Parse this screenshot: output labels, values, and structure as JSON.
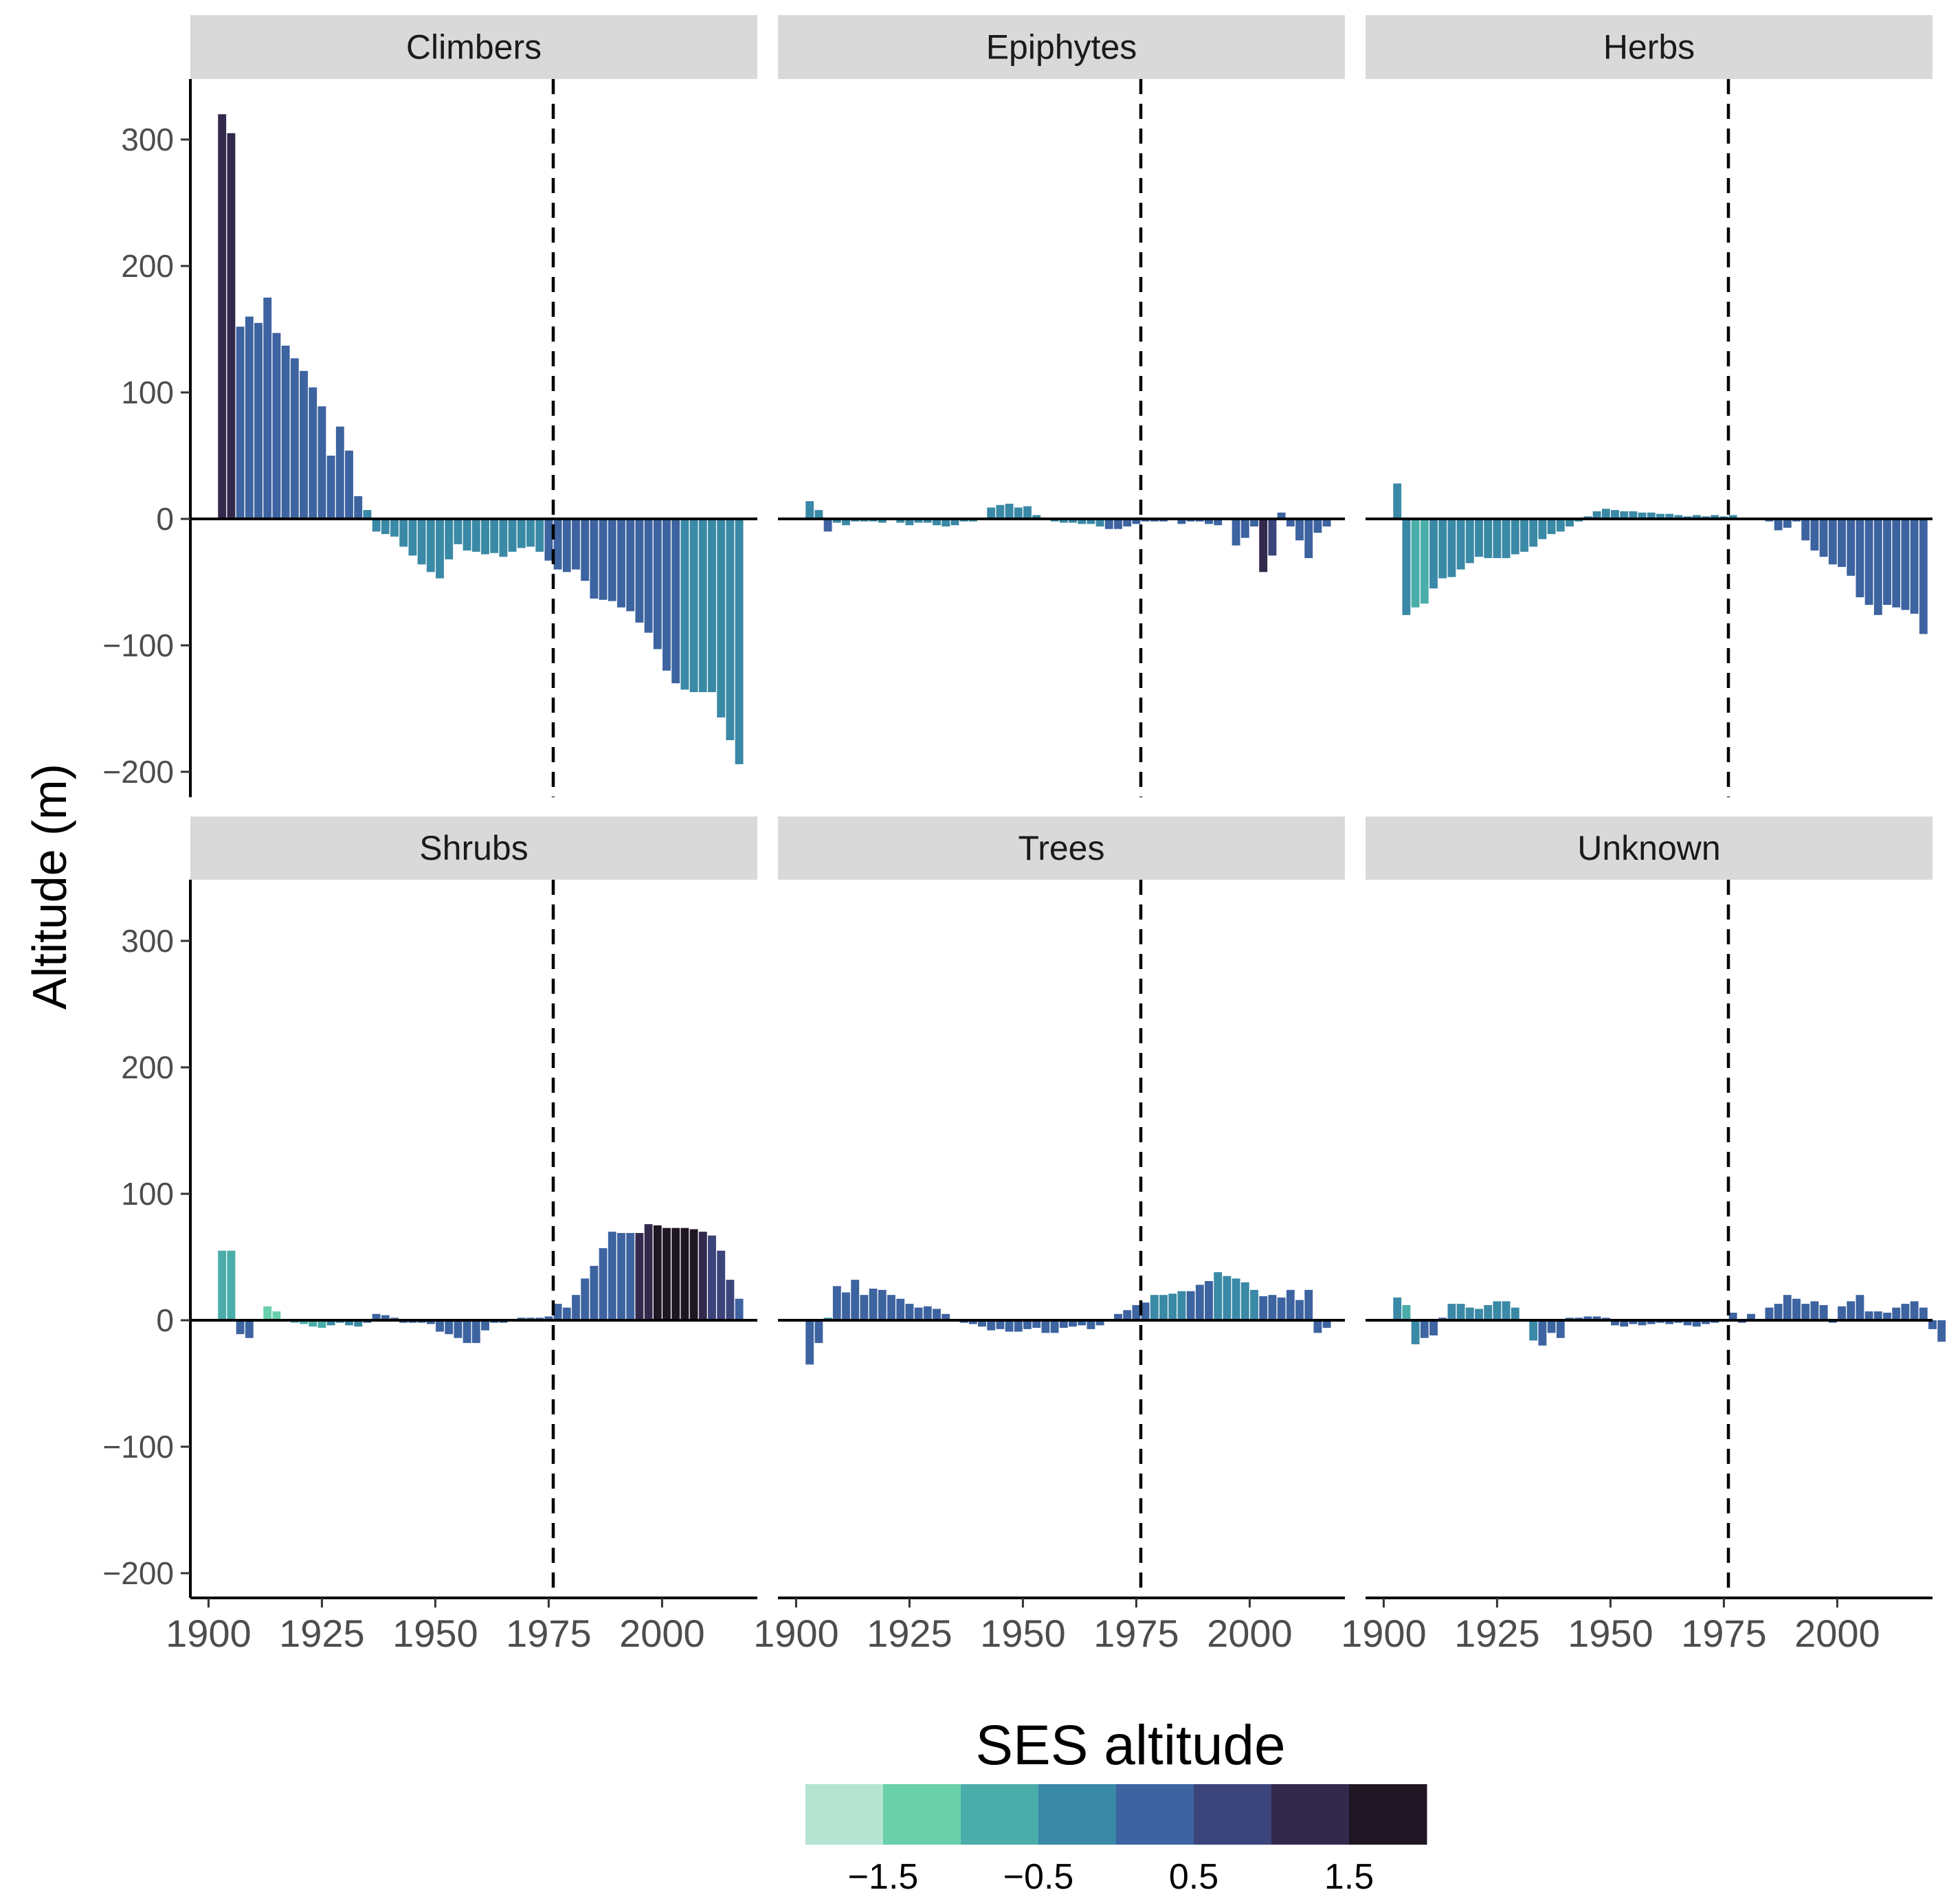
{
  "chart_data": {
    "type": "bar",
    "facet_layout": "2 rows x 3 columns",
    "ylabel": "Altitude (m)",
    "ylim": [
      -220,
      345
    ],
    "yticks": [
      300,
      200,
      100,
      0,
      -100,
      -200
    ],
    "ytick_labels": [
      "300",
      "200",
      "100",
      "0",
      "−100",
      "−200"
    ],
    "xlim": [
      1896,
      2021
    ],
    "xticks": [
      1900,
      1925,
      1950,
      1975,
      2000
    ],
    "xtick_labels": [
      "1900",
      "1925",
      "1950",
      "1975",
      "2000"
    ],
    "reference_line": {
      "x": 1976,
      "style": "dashed"
    },
    "grid": false,
    "legend": {
      "title": "SES altitude",
      "placement": "bottom",
      "bin_colors": [
        "#b5e4d2",
        "#69d0ab",
        "#4aada9",
        "#3a89a6",
        "#3d63a0",
        "#3b447b",
        "#33294d",
        "#1f1623"
      ],
      "tick_values": [
        -1.5,
        -0.5,
        0.5,
        1.5
      ],
      "tick_labels": [
        "−1.5",
        "−0.5",
        "0.5",
        "1.5"
      ],
      "bin_range": [
        -2,
        2
      ]
    },
    "x_start": 1903,
    "x_step": 2,
    "panels": [
      {
        "name": "Climbers",
        "values": [
          320,
          305,
          152,
          160,
          155,
          175,
          147,
          137,
          127,
          117,
          104,
          89,
          50,
          73,
          54,
          18,
          7,
          -10,
          -12,
          -14,
          -22,
          -29,
          -36,
          -42,
          -47,
          -32,
          -20,
          -25,
          -26,
          -28,
          -27,
          -30,
          -26,
          -23,
          -22,
          -26,
          -33,
          -40,
          -42,
          -40,
          -49,
          -63,
          -64,
          -65,
          -70,
          -73,
          -82,
          -90,
          -103,
          -120,
          -130,
          -135,
          -137,
          -137,
          -137,
          -157,
          -175,
          -194
        ],
        "ses": [
          1.1,
          1.1,
          0.4,
          0.4,
          0.4,
          0.4,
          0.4,
          0.4,
          0.4,
          0.4,
          0.4,
          0.4,
          0.4,
          0.4,
          0.4,
          0.4,
          -0.4,
          -0.3,
          -0.2,
          -0.3,
          -0.4,
          -0.4,
          -0.4,
          -0.4,
          -0.4,
          -0.4,
          -0.4,
          -0.4,
          -0.4,
          -0.4,
          -0.4,
          -0.4,
          -0.3,
          -0.3,
          -0.3,
          -0.3,
          0.2,
          0.2,
          0.2,
          0.2,
          0.2,
          0.2,
          0.2,
          0.2,
          0.2,
          0.2,
          0.2,
          0.2,
          0.2,
          0.2,
          0.2,
          -0.2,
          -0.2,
          -0.2,
          -0.2,
          -0.2,
          -0.2,
          -0.2
        ]
      },
      {
        "name": "Epiphytes",
        "values": [
          14,
          7,
          -10,
          -3,
          -5,
          -2,
          -2,
          -2,
          -3,
          -1,
          -3,
          -5,
          -3,
          -3,
          -5,
          -6,
          -5,
          -2,
          -2,
          1,
          9,
          11,
          12,
          9,
          10,
          3,
          1,
          -2,
          -3,
          -3,
          -4,
          -4,
          -6,
          -8,
          -8,
          -6,
          -4,
          -2,
          -2,
          -2,
          -1,
          -4,
          -2,
          -2,
          -4,
          -5,
          -1,
          -21,
          -15,
          -6,
          -42,
          -29,
          5,
          -6,
          -17,
          -31,
          -11,
          -6
        ],
        "ses": [
          -0.4,
          -0.4,
          0.1,
          -0.3,
          -0.3,
          -0.3,
          -0.3,
          -0.3,
          -0.3,
          -0.3,
          -0.3,
          -0.3,
          -0.3,
          -0.3,
          -0.3,
          -0.3,
          -0.3,
          -0.3,
          -0.3,
          -0.3,
          -0.4,
          -0.4,
          -0.4,
          -0.4,
          -0.4,
          -0.3,
          -0.3,
          -0.3,
          -0.3,
          -0.3,
          -0.3,
          -0.3,
          -0.3,
          0.3,
          0.3,
          0.3,
          0.3,
          0.3,
          0.3,
          0.3,
          0.3,
          0.3,
          0.3,
          0.3,
          0.3,
          0.3,
          0.3,
          0.3,
          0.3,
          0.3,
          1.0,
          0.6,
          0.3,
          0.3,
          0.3,
          0.3,
          0.3,
          0.3
        ]
      },
      {
        "name": "Herbs",
        "values": [
          28,
          -76,
          -70,
          -67,
          -55,
          -47,
          -46,
          -40,
          -35,
          -30,
          -31,
          -31,
          -31,
          -28,
          -26,
          -22,
          -16,
          -12,
          -10,
          -6,
          -2,
          2,
          6,
          8,
          7,
          6,
          6,
          5,
          5,
          4,
          4,
          3,
          2,
          3,
          2,
          3,
          2,
          3,
          0,
          0,
          0,
          -2,
          -9,
          -7,
          -2,
          -17,
          -25,
          -30,
          -36,
          -38,
          -45,
          -62,
          -68,
          -76,
          -68,
          -70,
          -72,
          -75,
          -91
        ],
        "ses": [
          -0.3,
          -0.3,
          -0.8,
          -0.8,
          -0.3,
          -0.3,
          -0.3,
          -0.3,
          -0.3,
          -0.3,
          -0.3,
          -0.3,
          -0.3,
          -0.3,
          -0.3,
          -0.3,
          -0.3,
          -0.3,
          -0.3,
          -0.3,
          -0.3,
          -0.3,
          -0.3,
          -0.3,
          -0.3,
          -0.3,
          -0.3,
          -0.3,
          -0.3,
          -0.3,
          -0.3,
          -0.3,
          -0.3,
          -0.3,
          -0.3,
          -0.3,
          -0.3,
          -0.3,
          -0.3,
          0.3,
          0.3,
          0.3,
          0.3,
          0.3,
          0.3,
          0.3,
          0.3,
          0.3,
          0.3,
          0.3,
          0.3,
          0.3,
          0.3,
          0.3,
          0.3,
          0.3,
          0.3,
          0.3,
          0.3
        ]
      },
      {
        "name": "Shrubs",
        "values": [
          55,
          55,
          -11,
          -14,
          -1,
          11,
          7,
          -1,
          -2,
          -3,
          -5,
          -6,
          -4,
          -2,
          -4,
          -5,
          -2,
          5,
          4,
          2,
          -2,
          -2,
          -2,
          -3,
          -9,
          -11,
          -14,
          -18,
          -18,
          -8,
          -2,
          -2,
          -1,
          2,
          2,
          2,
          3,
          13,
          10,
          20,
          33,
          43,
          57,
          70,
          69,
          69,
          69,
          76,
          75,
          73,
          73,
          73,
          72,
          70,
          67,
          55,
          32,
          17
        ],
        "ses": [
          -0.6,
          -0.6,
          0.1,
          0.1,
          -1.0,
          -1.2,
          -1.2,
          -0.3,
          -0.7,
          -0.7,
          -0.7,
          -0.7,
          -0.3,
          -0.3,
          -0.3,
          -0.3,
          0.1,
          0.1,
          0.1,
          0.1,
          0.1,
          0.1,
          0.1,
          0.1,
          0.1,
          0.1,
          0.1,
          0.1,
          0.1,
          0.1,
          0.1,
          0.1,
          0.1,
          0.1,
          0.1,
          0.1,
          0.1,
          0.3,
          0.3,
          0.3,
          0.3,
          0.3,
          0.3,
          0.4,
          0.4,
          0.4,
          1.1,
          1.1,
          1.6,
          1.6,
          1.6,
          1.6,
          1.6,
          1.1,
          0.9,
          0.9,
          0.9,
          0.4
        ]
      },
      {
        "name": "Trees",
        "values": [
          -35,
          -18,
          2,
          27,
          22,
          32,
          20,
          25,
          24,
          20,
          17,
          13,
          10,
          11,
          9,
          5,
          0,
          -2,
          -3,
          -5,
          -8,
          -7,
          -9,
          -9,
          -7,
          -6,
          -10,
          -10,
          -6,
          -5,
          -4,
          -7,
          -4,
          1,
          5,
          8,
          12,
          14,
          20,
          20,
          21,
          23,
          23,
          28,
          31,
          38,
          35,
          33,
          30,
          24,
          19,
          20,
          18,
          24,
          16,
          24,
          -10,
          -6
        ],
        "ses": [
          0.4,
          0.4,
          -0.3,
          0.4,
          0.4,
          0.4,
          0.4,
          0.4,
          0.4,
          0.4,
          0.4,
          0.4,
          0.4,
          0.4,
          0.4,
          0.4,
          0.4,
          0.4,
          0.4,
          0.4,
          0.4,
          0.4,
          0.4,
          0.4,
          0.4,
          0.4,
          0.4,
          0.4,
          0.4,
          0.4,
          0.4,
          0.4,
          0.4,
          0.4,
          0.4,
          0.4,
          0.4,
          0.4,
          -0.4,
          -0.4,
          -0.4,
          -0.4,
          0.4,
          0.4,
          0.4,
          -0.4,
          -0.4,
          -0.4,
          -0.4,
          -0.4,
          0.4,
          0.4,
          0.4,
          0.4,
          0.4,
          0.4,
          0.4,
          0.4
        ]
      },
      {
        "name": "Unknown",
        "values": [
          18,
          12,
          -19,
          -14,
          -12,
          2,
          13,
          13,
          10,
          9,
          12,
          15,
          15,
          10,
          0,
          -16,
          -20,
          -10,
          -14,
          2,
          2,
          3,
          3,
          2,
          -4,
          -5,
          -3,
          -4,
          -3,
          -2,
          -3,
          -2,
          -4,
          -5,
          -3,
          -2,
          -1,
          6,
          -2,
          5,
          1,
          10,
          13,
          20,
          17,
          13,
          15,
          12,
          -2,
          11,
          15,
          20,
          7,
          7,
          6,
          10,
          13,
          15,
          10,
          -7,
          -17
        ],
        "ses": [
          -0.3,
          -1.0,
          -0.3,
          0.4,
          0.4,
          0.4,
          -0.3,
          -0.3,
          -0.3,
          -0.3,
          -0.3,
          -0.3,
          -0.3,
          -0.3,
          -0.3,
          -0.3,
          0.4,
          0.4,
          0.4,
          0.4,
          0.4,
          0.4,
          0.4,
          0.4,
          0.4,
          0.4,
          0.4,
          0.4,
          0.4,
          0.4,
          0.4,
          0.4,
          0.4,
          0.4,
          0.4,
          0.4,
          0.4,
          0.4,
          0.4,
          0.4,
          0.4,
          0.4,
          0.4,
          0.4,
          0.4,
          0.4,
          0.4,
          0.4,
          0.4,
          0.4,
          0.4,
          0.4,
          0.4,
          0.4,
          0.4,
          0.4,
          0.4,
          0.4,
          0.4,
          0.4,
          0.4
        ]
      }
    ]
  }
}
